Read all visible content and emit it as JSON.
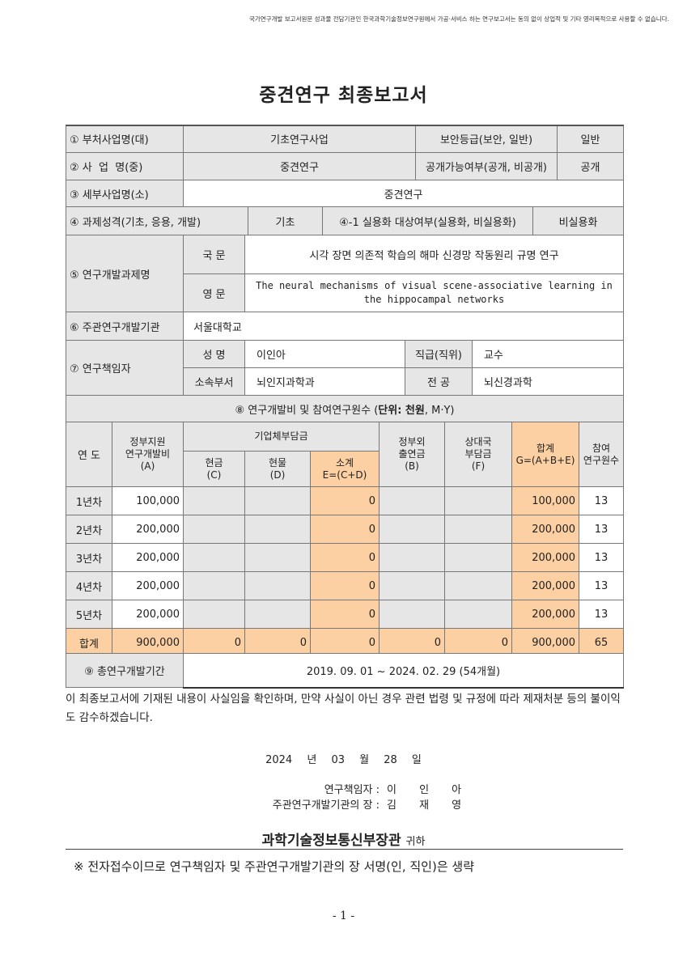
{
  "notice": "국가연구개발 보고서원문 성과물 전담기관인 한국과학기술정보연구원에서 가공·서비스 하는 연구보고서는 동의 없이 상업적 및 기타 영리목적으로 사용할 수 없습니다.",
  "title": "중견연구 최종보고서",
  "info": {
    "r1": {
      "label": "① 부처사업명(대)",
      "value": "기초연구사업",
      "label2": "보안등급(보안, 일반)",
      "value2": "일반"
    },
    "r2": {
      "label": "② 사  업  명(중)",
      "value": "중견연구",
      "label2": "공개가능여부(공개, 비공개)",
      "value2": "공개"
    },
    "r3": {
      "label": "③ 세부사업명(소)",
      "value": "중견연구"
    },
    "r4": {
      "label": "④ 과제성격(기초, 응용, 개발)",
      "value": "기초",
      "label2": "④-1 실용화 대상여부(실용화, 비실용화)",
      "value2": "비실용화"
    },
    "r5": {
      "label": "⑤ 연구개발과제명",
      "kor_label": "국 문",
      "kor": "시각 장면 의존적 학습의 해마 신경망 작동원리 규명 연구",
      "eng_label": "영 문",
      "eng": "The neural mechanisms of visual scene-associative learning in the hippocampal networks"
    },
    "r6": {
      "label": "⑥ 주관연구개발기관",
      "value": "서울대학교"
    },
    "r7": {
      "label": "⑦ 연구책임자",
      "name_label": "성 명",
      "name": "이인아",
      "rank_label": "직급(직위)",
      "rank": "교수",
      "dept_label": "소속부서",
      "dept": "뇌인지과학과",
      "major_label": "전 공",
      "major": "뇌신경과학"
    }
  },
  "budget": {
    "heading_prefix": "⑧ 연구개발비 및 참여연구원수 (",
    "heading_unit": "단위: 천원",
    "heading_suffix": ", M·Y)",
    "headers": {
      "year": "연 도",
      "gov": "정부지원\n연구개발비\n(A)",
      "company": "기업체부담금",
      "cash": "현금\n(C)",
      "inkind": "현물\n(D)",
      "subtotal": "소계\nE=(C+D)",
      "nongov": "정부외\n출연금\n(B)",
      "partner": "상대국\n부담금\n(F)",
      "total": "합계\nG=(A+B+E)",
      "researchers": "참여\n연구원수"
    },
    "rows": [
      {
        "year": "1년차",
        "gov": "100,000",
        "cash": "",
        "inkind": "",
        "subtotal": "0",
        "nongov": "",
        "partner": "",
        "total": "100,000",
        "researchers": "13"
      },
      {
        "year": "2년차",
        "gov": "200,000",
        "cash": "",
        "inkind": "",
        "subtotal": "0",
        "nongov": "",
        "partner": "",
        "total": "200,000",
        "researchers": "13"
      },
      {
        "year": "3년차",
        "gov": "200,000",
        "cash": "",
        "inkind": "",
        "subtotal": "0",
        "nongov": "",
        "partner": "",
        "total": "200,000",
        "researchers": "13"
      },
      {
        "year": "4년차",
        "gov": "200,000",
        "cash": "",
        "inkind": "",
        "subtotal": "0",
        "nongov": "",
        "partner": "",
        "total": "200,000",
        "researchers": "13"
      },
      {
        "year": "5년차",
        "gov": "200,000",
        "cash": "",
        "inkind": "",
        "subtotal": "0",
        "nongov": "",
        "partner": "",
        "total": "200,000",
        "researchers": "13"
      }
    ],
    "sum": {
      "year": "합계",
      "gov": "900,000",
      "cash": "0",
      "inkind": "0",
      "subtotal": "0",
      "nongov": "0",
      "partner": "0",
      "total": "900,000",
      "researchers": "65"
    }
  },
  "period": {
    "label": "⑨ 총연구개발기간",
    "value": "2019. 09. 01 ~ 2024. 02. 29 (54개월)"
  },
  "statement": "이 최종보고서에 기재된 내용이 사실임을 확인하며, 만약 사실이 아닌 경우 관련 법령 및 규정에 따라 제재처분 등의 불이익도 감수하겠습니다.",
  "date": {
    "year": "2024",
    "y": "년",
    "month": "03",
    "m": "월",
    "day": "28",
    "d": "일"
  },
  "signatures": [
    {
      "label": "연구책임자 :",
      "value": "이 인 아"
    },
    {
      "label": "주관연구개발기관의 장 :",
      "value": "김 재 영"
    }
  ],
  "recipient": {
    "name": "과학기술정보통신부장관",
    "suffix": "귀하"
  },
  "footnote": "※ 전자접수이므로 연구책임자 및 주관연구개발기관의 장 서명(인, 직인)은 생략",
  "page_number": "- 1 -",
  "colors": {
    "header_gray": "#e6e6e6",
    "highlight_orange": "#fcd0a2"
  }
}
